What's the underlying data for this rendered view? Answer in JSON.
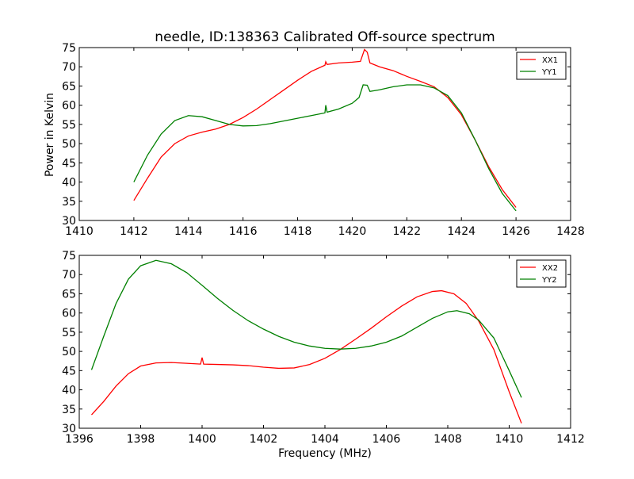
{
  "title": "needle, ID:138363 Calibrated Off-source spectrum",
  "ylabel": "Power in Kelvin",
  "xlabel": "Frequency (MHz)",
  "colors": {
    "red": "#ff0000",
    "green": "#008000"
  },
  "chart_data": [
    {
      "type": "line",
      "xlim": [
        1410,
        1428
      ],
      "ylim": [
        30,
        75
      ],
      "xticks": [
        1410,
        1412,
        1414,
        1416,
        1418,
        1420,
        1422,
        1424,
        1426,
        1428
      ],
      "yticks": [
        30,
        35,
        40,
        45,
        50,
        55,
        60,
        65,
        70,
        75
      ],
      "legend_position": "top-right",
      "series": [
        {
          "name": "XX1",
          "color": "#ff0000",
          "points": [
            [
              1412.0,
              35.2
            ],
            [
              1412.5,
              41.0
            ],
            [
              1413.0,
              46.5
            ],
            [
              1413.5,
              50.0
            ],
            [
              1414.0,
              52.0
            ],
            [
              1414.5,
              53.0
            ],
            [
              1415.0,
              53.8
            ],
            [
              1415.5,
              55.0
            ],
            [
              1416.0,
              56.8
            ],
            [
              1416.5,
              59.0
            ],
            [
              1417.0,
              61.5
            ],
            [
              1417.5,
              64.0
            ],
            [
              1418.0,
              66.5
            ],
            [
              1418.5,
              68.8
            ],
            [
              1419.0,
              70.4
            ],
            [
              1419.03,
              71.3
            ],
            [
              1419.08,
              70.6
            ],
            [
              1419.5,
              71.0
            ],
            [
              1420.0,
              71.2
            ],
            [
              1420.3,
              71.4
            ],
            [
              1420.45,
              74.5
            ],
            [
              1420.55,
              73.8
            ],
            [
              1420.65,
              71.0
            ],
            [
              1421.0,
              70.0
            ],
            [
              1421.5,
              69.0
            ],
            [
              1422.0,
              67.5
            ],
            [
              1422.5,
              66.2
            ],
            [
              1423.0,
              64.8
            ],
            [
              1423.5,
              62.0
            ],
            [
              1424.0,
              57.5
            ],
            [
              1424.5,
              51.0
            ],
            [
              1425.0,
              44.0
            ],
            [
              1425.5,
              38.0
            ],
            [
              1426.0,
              33.4
            ]
          ]
        },
        {
          "name": "YY1",
          "color": "#008000",
          "points": [
            [
              1412.0,
              40.0
            ],
            [
              1412.5,
              47.0
            ],
            [
              1413.0,
              52.5
            ],
            [
              1413.5,
              56.0
            ],
            [
              1414.0,
              57.3
            ],
            [
              1414.5,
              57.0
            ],
            [
              1415.0,
              56.0
            ],
            [
              1415.5,
              55.0
            ],
            [
              1416.0,
              54.6
            ],
            [
              1416.5,
              54.7
            ],
            [
              1417.0,
              55.2
            ],
            [
              1417.5,
              55.9
            ],
            [
              1418.0,
              56.6
            ],
            [
              1418.5,
              57.3
            ],
            [
              1419.0,
              58.0
            ],
            [
              1419.03,
              60.0
            ],
            [
              1419.08,
              58.2
            ],
            [
              1419.5,
              59.0
            ],
            [
              1420.0,
              60.5
            ],
            [
              1420.25,
              62.0
            ],
            [
              1420.4,
              65.3
            ],
            [
              1420.55,
              65.2
            ],
            [
              1420.65,
              63.6
            ],
            [
              1421.0,
              64.0
            ],
            [
              1421.5,
              64.8
            ],
            [
              1422.0,
              65.3
            ],
            [
              1422.5,
              65.3
            ],
            [
              1423.0,
              64.5
            ],
            [
              1423.5,
              62.5
            ],
            [
              1424.0,
              58.0
            ],
            [
              1424.5,
              51.0
            ],
            [
              1425.0,
              43.5
            ],
            [
              1425.5,
              37.0
            ],
            [
              1426.0,
              32.5
            ]
          ]
        }
      ]
    },
    {
      "type": "line",
      "xlim": [
        1396,
        1412
      ],
      "ylim": [
        30,
        75
      ],
      "xticks": [
        1396,
        1398,
        1400,
        1402,
        1404,
        1406,
        1408,
        1410,
        1412
      ],
      "yticks": [
        30,
        35,
        40,
        45,
        50,
        55,
        60,
        65,
        70,
        75
      ],
      "legend_position": "top-right",
      "series": [
        {
          "name": "XX2",
          "color": "#ff0000",
          "points": [
            [
              1396.4,
              33.5
            ],
            [
              1396.8,
              37.0
            ],
            [
              1397.2,
              41.0
            ],
            [
              1397.6,
              44.2
            ],
            [
              1398.0,
              46.2
            ],
            [
              1398.5,
              47.0
            ],
            [
              1399.0,
              47.1
            ],
            [
              1399.5,
              46.9
            ],
            [
              1399.95,
              46.7
            ],
            [
              1400.0,
              48.4
            ],
            [
              1400.05,
              46.7
            ],
            [
              1400.5,
              46.6
            ],
            [
              1401.0,
              46.5
            ],
            [
              1401.5,
              46.3
            ],
            [
              1402.0,
              45.9
            ],
            [
              1402.5,
              45.6
            ],
            [
              1403.0,
              45.7
            ],
            [
              1403.5,
              46.6
            ],
            [
              1404.0,
              48.2
            ],
            [
              1404.5,
              50.5
            ],
            [
              1405.0,
              53.2
            ],
            [
              1405.5,
              56.0
            ],
            [
              1406.0,
              59.0
            ],
            [
              1406.5,
              61.8
            ],
            [
              1407.0,
              64.2
            ],
            [
              1407.5,
              65.6
            ],
            [
              1407.8,
              65.8
            ],
            [
              1408.2,
              65.0
            ],
            [
              1408.6,
              62.5
            ],
            [
              1409.0,
              58.0
            ],
            [
              1409.5,
              50.5
            ],
            [
              1410.0,
              39.5
            ],
            [
              1410.4,
              31.3
            ]
          ]
        },
        {
          "name": "YY2",
          "color": "#008000",
          "points": [
            [
              1396.4,
              45.2
            ],
            [
              1396.8,
              54.0
            ],
            [
              1397.2,
              62.5
            ],
            [
              1397.6,
              68.8
            ],
            [
              1398.0,
              72.3
            ],
            [
              1398.5,
              73.7
            ],
            [
              1399.0,
              72.8
            ],
            [
              1399.5,
              70.5
            ],
            [
              1400.0,
              67.2
            ],
            [
              1400.5,
              63.8
            ],
            [
              1401.0,
              60.7
            ],
            [
              1401.5,
              58.0
            ],
            [
              1402.0,
              55.8
            ],
            [
              1402.5,
              53.9
            ],
            [
              1403.0,
              52.4
            ],
            [
              1403.5,
              51.4
            ],
            [
              1404.0,
              50.8
            ],
            [
              1404.5,
              50.6
            ],
            [
              1405.0,
              50.8
            ],
            [
              1405.5,
              51.4
            ],
            [
              1406.0,
              52.4
            ],
            [
              1406.5,
              54.0
            ],
            [
              1407.0,
              56.3
            ],
            [
              1407.5,
              58.6
            ],
            [
              1408.0,
              60.3
            ],
            [
              1408.3,
              60.6
            ],
            [
              1408.7,
              59.8
            ],
            [
              1409.0,
              58.2
            ],
            [
              1409.5,
              53.5
            ],
            [
              1410.0,
              45.0
            ],
            [
              1410.4,
              38.0
            ]
          ]
        }
      ]
    }
  ]
}
